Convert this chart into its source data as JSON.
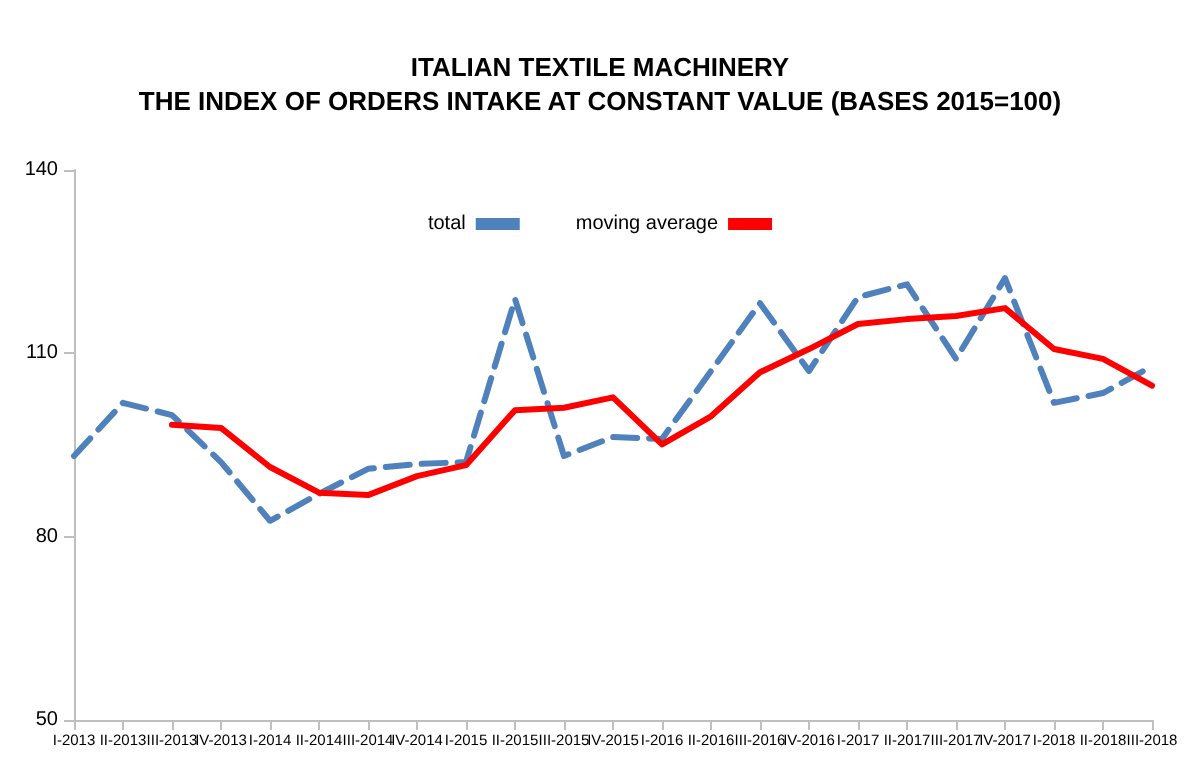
{
  "chart_data": {
    "type": "line",
    "title": "ITALIAN TEXTILE MACHINERY\nTHE INDEX OF ORDERS INTAKE AT CONSTANT VALUE (BASES 2015=100)",
    "categories": [
      "I-2013",
      "II-2013",
      "III-2013",
      "IV-2013",
      "I-2014",
      "II-2014",
      "III-2014",
      "IV-2014",
      "I-2015",
      "II-2015",
      "III-2015",
      "IV-2015",
      "I-2016",
      "II-2016",
      "III-2016",
      "IV-2016",
      "I-2017",
      "II-2017",
      "III-2017",
      "IV-2017",
      "I-2018",
      "II-2018",
      "III-2018"
    ],
    "series": [
      {
        "name": "total",
        "color": "#4f81bd",
        "line_style": "dashed",
        "values": [
          93.2,
          101.9,
          99.9,
          92.2,
          82.6,
          87.0,
          91.1,
          91.9,
          92.2,
          118.9,
          93.2,
          96.3,
          96.0,
          107.1,
          118.2,
          107.1,
          119.2,
          121.3,
          109.1,
          122.3,
          101.9,
          103.5,
          107.9
        ]
      },
      {
        "name": "moving average",
        "color": "#ff0000",
        "line_style": "solid",
        "values": [
          null,
          null,
          98.3,
          97.8,
          91.4,
          87.2,
          86.8,
          89.9,
          91.7,
          100.7,
          101.1,
          102.8,
          95.1,
          99.7,
          106.9,
          110.7,
          114.8,
          115.6,
          116.1,
          117.4,
          110.7,
          109.1,
          104.7
        ]
      }
    ],
    "ylim": [
      50,
      140
    ],
    "yticks": [
      50,
      80,
      110,
      140
    ],
    "grid": false,
    "legend": "top",
    "marker": "none"
  }
}
